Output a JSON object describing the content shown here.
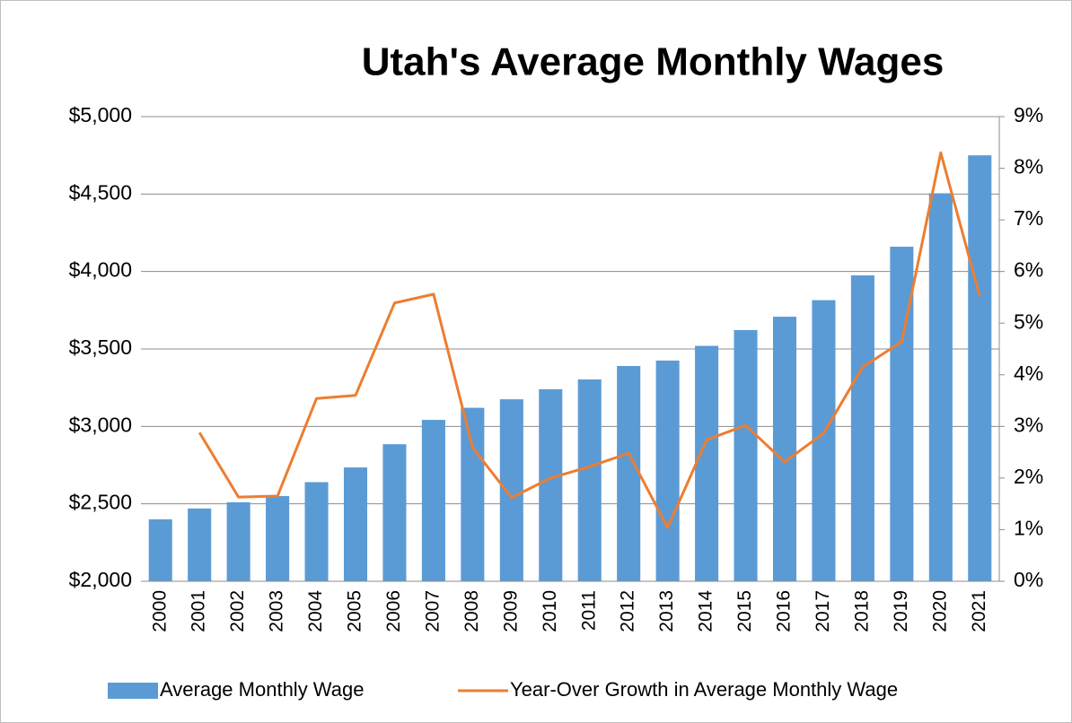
{
  "chart_data": {
    "type": "bar_line",
    "title": "Utah's Average Monthly Wages",
    "categories": [
      "2000",
      "2001",
      "2002",
      "2003",
      "2004",
      "2005",
      "2006",
      "2007",
      "2008",
      "2009",
      "2010",
      "2011",
      "2012",
      "2013",
      "2014",
      "2015",
      "2016",
      "2017",
      "2018",
      "2019",
      "2020",
      "2021"
    ],
    "series": [
      {
        "name": "Average Monthly Wage",
        "type": "bar",
        "color": "#5b9bd5",
        "values": [
          2400,
          2470,
          2510,
          2550,
          2640,
          2735,
          2885,
          3042,
          3120,
          3175,
          3240,
          3303,
          3390,
          3425,
          3520,
          3622,
          3708,
          3815,
          3975,
          4160,
          4505,
          4750
        ]
      },
      {
        "name": "Year-Over Growth in Average Monthly Wage",
        "type": "line",
        "axis": "y2",
        "color": "#ed7d31",
        "values": [
          null,
          2.88,
          1.63,
          1.65,
          3.54,
          3.6,
          5.39,
          5.56,
          2.59,
          1.62,
          2.0,
          2.22,
          2.48,
          1.04,
          2.74,
          3.02,
          2.31,
          2.87,
          4.15,
          4.64,
          8.3,
          5.52
        ]
      }
    ],
    "ylim": [
      2000,
      5000
    ],
    "yticks": [
      {
        "value": 2000,
        "label": "$2,000"
      },
      {
        "value": 2500,
        "label": "$2,500"
      },
      {
        "value": 3000,
        "label": "$3,000"
      },
      {
        "value": 3500,
        "label": "$3,500"
      },
      {
        "value": 4000,
        "label": "$4,000"
      },
      {
        "value": 4500,
        "label": "$4,500"
      },
      {
        "value": 5000,
        "label": "$5,000"
      }
    ],
    "y2lim": [
      0,
      9
    ],
    "y2ticks": [
      {
        "value": 0,
        "label": "0%"
      },
      {
        "value": 1,
        "label": "1%"
      },
      {
        "value": 2,
        "label": "2%"
      },
      {
        "value": 3,
        "label": "3%"
      },
      {
        "value": 4,
        "label": "4%"
      },
      {
        "value": 5,
        "label": "5%"
      },
      {
        "value": 6,
        "label": "6%"
      },
      {
        "value": 7,
        "label": "7%"
      },
      {
        "value": 8,
        "label": "8%"
      },
      {
        "value": 9,
        "label": "9%"
      }
    ],
    "grid": true,
    "legend": "bottom"
  }
}
